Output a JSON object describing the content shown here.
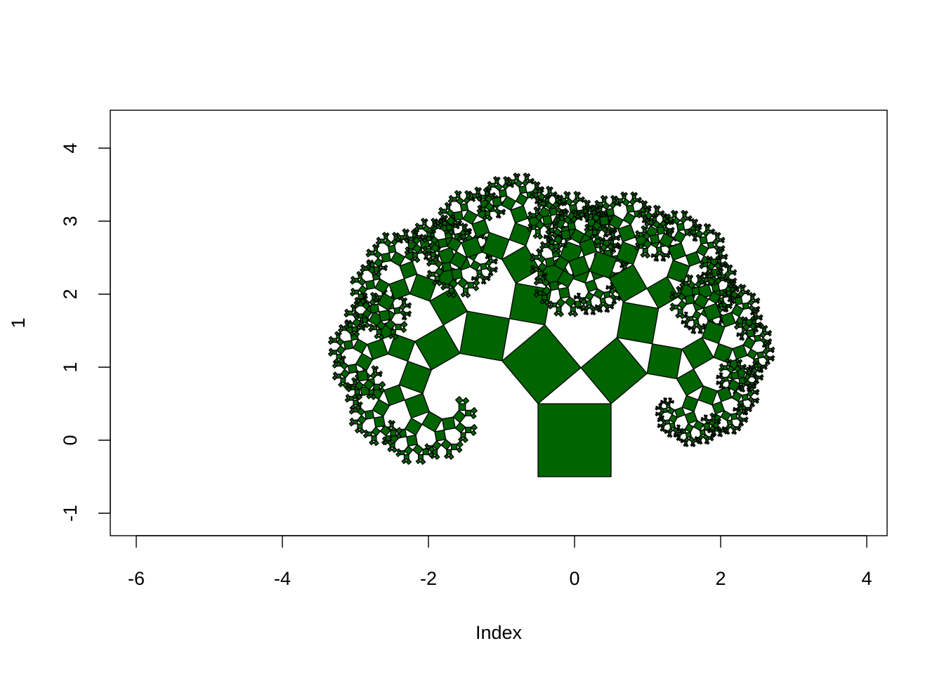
{
  "chart_data": {
    "type": "scatter",
    "title": "",
    "xlabel": "Index",
    "ylabel": "1",
    "xlim": [
      -6,
      4
    ],
    "ylim": [
      -1,
      4
    ],
    "xticks": [
      "-6",
      "-4",
      "-2",
      "0",
      "2",
      "4"
    ],
    "yticks": [
      "-1",
      "0",
      "1",
      "2",
      "3",
      "4"
    ],
    "grid": false,
    "legend": "none",
    "fractal": {
      "name": "Pythagoras tree",
      "base_square": {
        "center": [
          0,
          0
        ],
        "side": 1
      },
      "depth": 10,
      "left_angle_deg": 40,
      "fill": "#006400",
      "stroke": "#000000"
    }
  }
}
